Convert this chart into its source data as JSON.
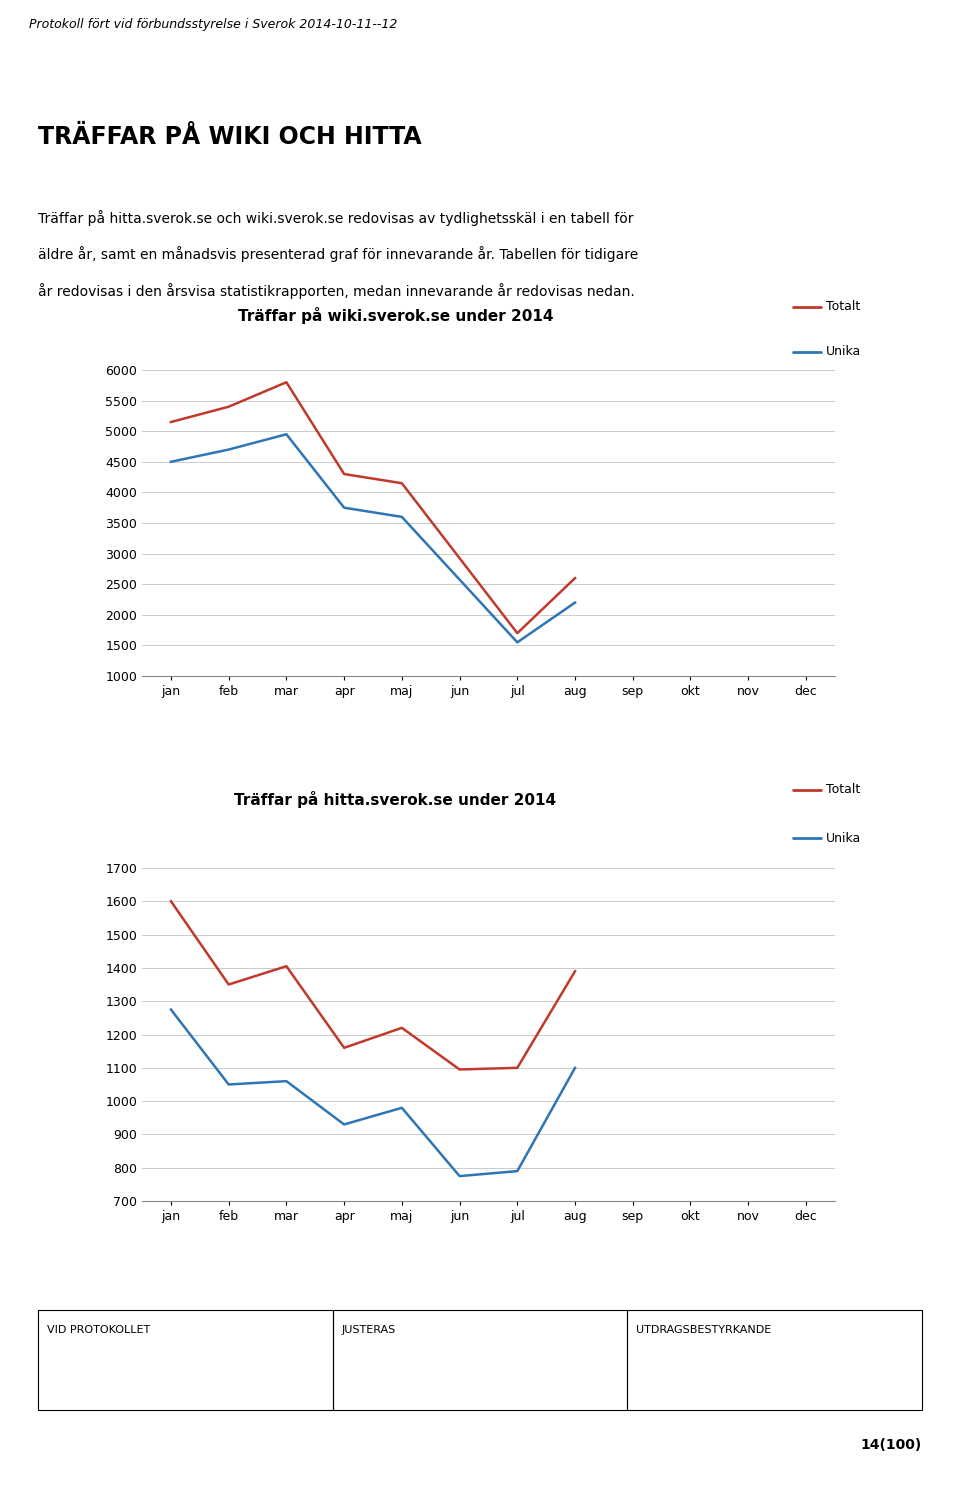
{
  "header_text": "Protokoll fört vid förbundsstyrelse i Sverok 2014-10-11--12",
  "title": "TRÄFFAR PÅ WIKI OCH HITTA",
  "body_text_lines": [
    "Träffar på hitta.sverok.se och wiki.sverok.se redovisas av tydlighetsskäl i en tabell för",
    "äldre år, samt en månadsvis presenterad graf för innevarande år. Tabellen för tidigare",
    "år redovisas i den årsvisa statistikrapporten, medan innevarande år redovisas nedan."
  ],
  "months": [
    "jan",
    "feb",
    "mar",
    "apr",
    "maj",
    "jun",
    "jul",
    "aug",
    "sep",
    "okt",
    "nov",
    "dec"
  ],
  "chart1": {
    "title": "Träffar på wiki.sverok.se under 2014",
    "totalt": [
      5150,
      5400,
      5800,
      4300,
      4150,
      null,
      1700,
      2600,
      null,
      null,
      null,
      null
    ],
    "unika": [
      4500,
      4700,
      4950,
      3750,
      3600,
      null,
      1550,
      2200,
      null,
      null,
      null,
      null
    ],
    "ylim": [
      1000,
      6000
    ],
    "yticks": [
      1000,
      1500,
      2000,
      2500,
      3000,
      3500,
      4000,
      4500,
      5000,
      5500,
      6000
    ],
    "color_totalt": "#c0392b",
    "color_unika": "#2e75b6",
    "legend_totalt": "Totalt",
    "legend_unika": "Unika"
  },
  "chart2": {
    "title": "Träffar på hitta.sverok.se under 2014",
    "totalt": [
      1600,
      1350,
      1405,
      1160,
      1220,
      1095,
      1100,
      1390,
      null,
      null,
      null,
      null
    ],
    "unika": [
      1275,
      1050,
      1060,
      930,
      980,
      775,
      790,
      1100,
      null,
      null,
      null,
      null
    ],
    "ylim": [
      700,
      1700
    ],
    "yticks": [
      700,
      800,
      900,
      1000,
      1100,
      1200,
      1300,
      1400,
      1500,
      1600,
      1700
    ],
    "color_totalt": "#c0392b",
    "color_unika": "#2e75b6",
    "legend_totalt": "Totalt",
    "legend_unika": "Unika"
  },
  "footer_cols": [
    "VID PROTOKOLLET",
    "JUSTERAS",
    "UTDRAGSBESTYRKANDE"
  ],
  "page_num": "14(100)",
  "bg_color": "#ffffff",
  "border_color": "#555555",
  "grid_color": "#cccccc",
  "header_fontsize": 9,
  "title_fontsize": 17,
  "body_fontsize": 10,
  "chart_title_fontsize": 11,
  "tick_fontsize": 9,
  "legend_fontsize": 9,
  "footer_fontsize": 8,
  "pagenum_fontsize": 10
}
